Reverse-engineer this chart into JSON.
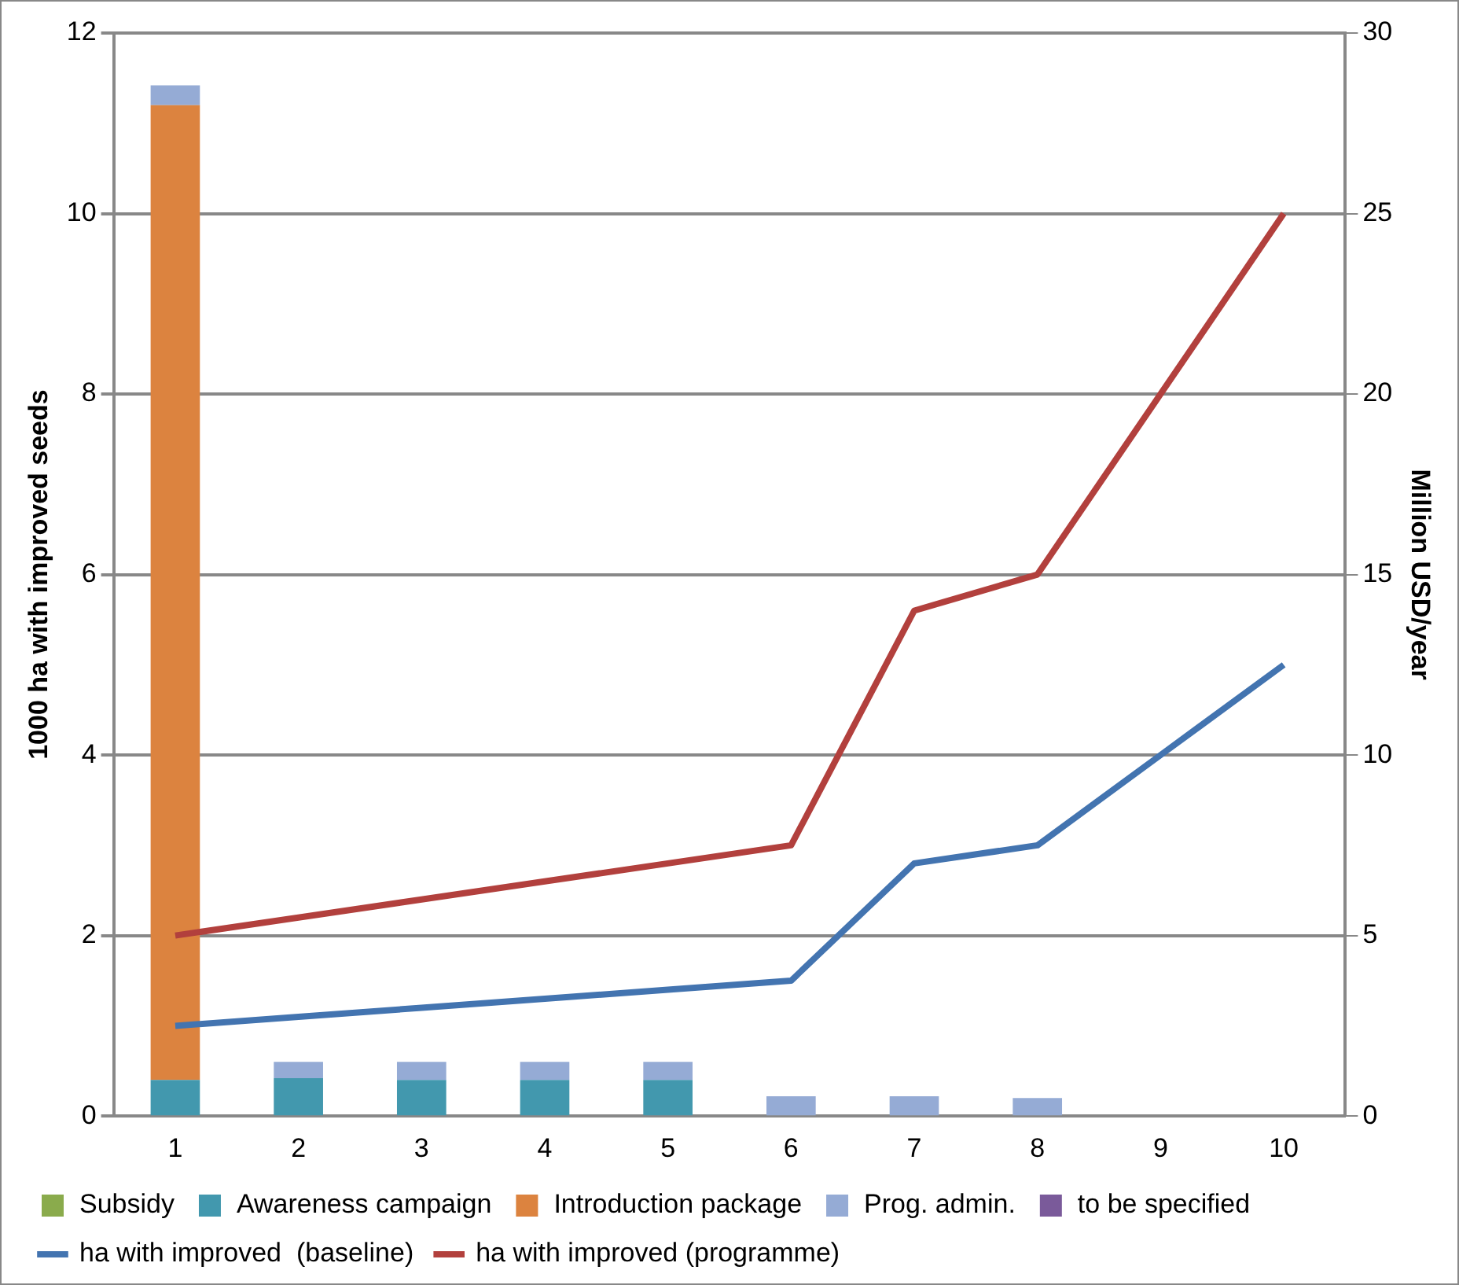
{
  "chart_data": {
    "type": "bar",
    "stacked": true,
    "categories": [
      "1",
      "2",
      "3",
      "4",
      "5",
      "6",
      "7",
      "8",
      "9",
      "10"
    ],
    "ylabel": "1000 ha with improved seeds",
    "y2label": "Million USD/year",
    "ylim": [
      0,
      12
    ],
    "yticks": [
      0,
      2,
      4,
      6,
      8,
      10,
      12
    ],
    "y2lim": [
      0,
      30
    ],
    "y2ticks": [
      0,
      5,
      10,
      15,
      20,
      25,
      30
    ],
    "grid": "y",
    "legend": "bottom",
    "series": [
      {
        "name": "Subsidy",
        "color": "#8aab4c",
        "axis": "y2",
        "values": [
          0,
          0,
          0,
          0,
          0,
          0,
          0,
          0,
          0,
          0
        ]
      },
      {
        "name": "Awareness campaign",
        "color": "#4298ae",
        "axis": "y2",
        "values": [
          1.0,
          1.05,
          1.0,
          1.0,
          1.0,
          0,
          0,
          0,
          0,
          0
        ]
      },
      {
        "name": "Introduction package",
        "color": "#dc833f",
        "axis": "y2",
        "values": [
          27.0,
          0,
          0,
          0,
          0,
          0,
          0,
          0,
          0,
          0
        ]
      },
      {
        "name": "Prog. admin.",
        "color": "#95abd5",
        "axis": "y2",
        "values": [
          0.55,
          0.45,
          0.5,
          0.5,
          0.5,
          0.55,
          0.55,
          0.5,
          0,
          0
        ]
      },
      {
        "name": "to be specified",
        "color": "#7a5a9a",
        "axis": "y2",
        "values": [
          0,
          0,
          0,
          0,
          0,
          0,
          0,
          0,
          0,
          0
        ]
      },
      {
        "name": "ha with improved  (baseline)",
        "type": "line",
        "color": "#4374b0",
        "values": [
          1.0,
          1.1,
          1.2,
          1.3,
          1.4,
          1.5,
          2.8,
          3.0,
          4.0,
          5.0
        ]
      },
      {
        "name": "ha with improved (programme)",
        "type": "line",
        "color": "#b2403d",
        "values": [
          2.0,
          2.2,
          2.4,
          2.6,
          2.8,
          3.0,
          5.6,
          6.0,
          8.0,
          10.0
        ]
      }
    ]
  }
}
